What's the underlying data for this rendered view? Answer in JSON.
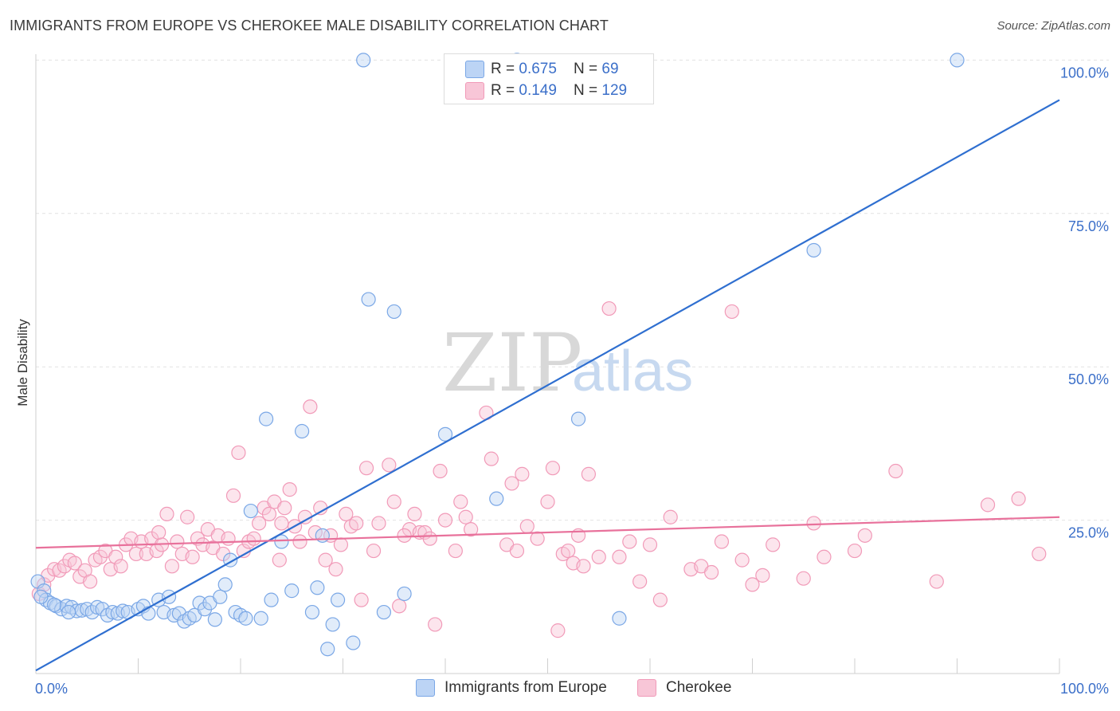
{
  "header": {
    "title": "IMMIGRANTS FROM EUROPE VS CHEROKEE MALE DISABILITY CORRELATION CHART",
    "source": "Source: ZipAtlas.com"
  },
  "watermark": {
    "zip": "ZIP",
    "atlas": "atlas"
  },
  "legend": {
    "series": [
      {
        "r_label": "R = ",
        "r_value": "0.675",
        "n_label": "N = ",
        "n_value": "69"
      },
      {
        "r_label": "R = ",
        "r_value": "0.149",
        "n_label": "N = ",
        "n_value": "129"
      }
    ]
  },
  "chart_data": {
    "type": "scatter",
    "title": "IMMIGRANTS FROM EUROPE VS CHEROKEE MALE DISABILITY CORRELATION CHART",
    "xlabel": "",
    "ylabel": "Male Disability",
    "xlim": [
      0,
      100
    ],
    "ylim": [
      0,
      102
    ],
    "x_tick_labels": [
      "0.0%",
      "100.0%"
    ],
    "y_ticks": [
      25,
      50,
      75,
      100
    ],
    "y_tick_labels": [
      "25.0%",
      "50.0%",
      "75.0%",
      "100.0%"
    ],
    "grid": true,
    "legend_position": "top-center",
    "series": [
      {
        "name": "Immigrants from Europe",
        "color": "#7aa7e6",
        "fill": "#bcd4f5",
        "line_color": "#2f6fd0",
        "trend": {
          "x": [
            0,
            100
          ],
          "y": [
            0.5,
            93.5
          ]
        },
        "points": [
          [
            0.2,
            15
          ],
          [
            0.8,
            13.5
          ],
          [
            1,
            12
          ],
          [
            1.4,
            11.5
          ],
          [
            2,
            11
          ],
          [
            2.5,
            10.5
          ],
          [
            3,
            11
          ],
          [
            3.5,
            10.8
          ],
          [
            4,
            10.2
          ],
          [
            4.5,
            10.3
          ],
          [
            5,
            10.5
          ],
          [
            5.5,
            10
          ],
          [
            6,
            10.8
          ],
          [
            6.5,
            10.5
          ],
          [
            7,
            9.5
          ],
          [
            7.5,
            10
          ],
          [
            8,
            9.8
          ],
          [
            8.5,
            10.2
          ],
          [
            9,
            10
          ],
          [
            10,
            10.5
          ],
          [
            10.5,
            11
          ],
          [
            11,
            9.8
          ],
          [
            12,
            12
          ],
          [
            12.5,
            10
          ],
          [
            13,
            12.5
          ],
          [
            13.5,
            9.5
          ],
          [
            14,
            9.8
          ],
          [
            14.5,
            8.5
          ],
          [
            15,
            9
          ],
          [
            15.5,
            9.5
          ],
          [
            16,
            11.5
          ],
          [
            16.5,
            10.5
          ],
          [
            17,
            11.5
          ],
          [
            17.5,
            8.8
          ],
          [
            18,
            12.5
          ],
          [
            18.5,
            14.5
          ],
          [
            19,
            18.5
          ],
          [
            19.5,
            10
          ],
          [
            20,
            9.5
          ],
          [
            20.5,
            9
          ],
          [
            21,
            26.5
          ],
          [
            22,
            9
          ],
          [
            22.5,
            41.5
          ],
          [
            23,
            12
          ],
          [
            24,
            21.5
          ],
          [
            25,
            13.5
          ],
          [
            26,
            39.5
          ],
          [
            27,
            10
          ],
          [
            27.5,
            14
          ],
          [
            28,
            22.5
          ],
          [
            28.5,
            4
          ],
          [
            29,
            8
          ],
          [
            29.5,
            12
          ],
          [
            31,
            5
          ],
          [
            32,
            100
          ],
          [
            32.5,
            61
          ],
          [
            34,
            10
          ],
          [
            35,
            59
          ],
          [
            36,
            13
          ],
          [
            40,
            39
          ],
          [
            45,
            28.5
          ],
          [
            47,
            100
          ],
          [
            53,
            41.5
          ],
          [
            57,
            9
          ],
          [
            76,
            69
          ],
          [
            90,
            100
          ],
          [
            0.5,
            12.5
          ],
          [
            1.8,
            11.2
          ],
          [
            3.2,
            10
          ]
        ]
      },
      {
        "name": "Cherokee",
        "color": "#f19ab8",
        "fill": "#f8c6d7",
        "line_color": "#e8719b",
        "trend": {
          "x": [
            0,
            100
          ],
          "y": [
            20.5,
            25.5
          ]
        },
        "points": [
          [
            0.3,
            13
          ],
          [
            0.8,
            14.5
          ],
          [
            1.2,
            16
          ],
          [
            1.8,
            17
          ],
          [
            2.3,
            16.8
          ],
          [
            2.8,
            17.5
          ],
          [
            3.3,
            18.5
          ],
          [
            3.8,
            18
          ],
          [
            4.3,
            15.8
          ],
          [
            4.8,
            16.8
          ],
          [
            5.3,
            15
          ],
          [
            5.8,
            18.5
          ],
          [
            6.3,
            19
          ],
          [
            6.8,
            20
          ],
          [
            7.3,
            17
          ],
          [
            7.8,
            19
          ],
          [
            8.3,
            17.5
          ],
          [
            8.8,
            21
          ],
          [
            9.3,
            22
          ],
          [
            9.8,
            19.5
          ],
          [
            10.3,
            21.5
          ],
          [
            10.8,
            19.5
          ],
          [
            11.3,
            22
          ],
          [
            11.8,
            20
          ],
          [
            12.3,
            21
          ],
          [
            12.8,
            26
          ],
          [
            13.3,
            17.5
          ],
          [
            13.8,
            21.5
          ],
          [
            14.3,
            19.5
          ],
          [
            14.8,
            25.5
          ],
          [
            15.3,
            19
          ],
          [
            15.8,
            22
          ],
          [
            16.3,
            21
          ],
          [
            16.8,
            23.5
          ],
          [
            17.3,
            20.5
          ],
          [
            17.8,
            22.5
          ],
          [
            18.3,
            19.5
          ],
          [
            18.8,
            22
          ],
          [
            19.3,
            29
          ],
          [
            19.8,
            36
          ],
          [
            20.3,
            20
          ],
          [
            20.8,
            21.5
          ],
          [
            21.3,
            22
          ],
          [
            21.8,
            24.5
          ],
          [
            22.3,
            27
          ],
          [
            22.8,
            26
          ],
          [
            23.3,
            28
          ],
          [
            23.8,
            18.5
          ],
          [
            24.3,
            27
          ],
          [
            24.8,
            30
          ],
          [
            25.3,
            24
          ],
          [
            25.8,
            21.5
          ],
          [
            26.3,
            25.5
          ],
          [
            26.8,
            43.5
          ],
          [
            27.3,
            23
          ],
          [
            27.8,
            27
          ],
          [
            28.3,
            18.5
          ],
          [
            28.8,
            22.5
          ],
          [
            29.3,
            17
          ],
          [
            29.8,
            21
          ],
          [
            30.3,
            26
          ],
          [
            30.8,
            24
          ],
          [
            31.3,
            24.5
          ],
          [
            31.8,
            12
          ],
          [
            32.3,
            33.5
          ],
          [
            33,
            20
          ],
          [
            33.5,
            24.5
          ],
          [
            34.5,
            34
          ],
          [
            35,
            28
          ],
          [
            35.5,
            11
          ],
          [
            36.5,
            23.5
          ],
          [
            37,
            26
          ],
          [
            37.5,
            23
          ],
          [
            38,
            23
          ],
          [
            38.5,
            22
          ],
          [
            39,
            8
          ],
          [
            39.5,
            33
          ],
          [
            40,
            25
          ],
          [
            41,
            20
          ],
          [
            41.5,
            28
          ],
          [
            42,
            25.5
          ],
          [
            42.5,
            23.5
          ],
          [
            44,
            42.5
          ],
          [
            44.5,
            35
          ],
          [
            46,
            21
          ],
          [
            46.5,
            31
          ],
          [
            47,
            20
          ],
          [
            47.5,
            32.5
          ],
          [
            49,
            22
          ],
          [
            50,
            28
          ],
          [
            50.5,
            33.5
          ],
          [
            51,
            7
          ],
          [
            51.5,
            19.5
          ],
          [
            52,
            20
          ],
          [
            52.5,
            18
          ],
          [
            53,
            22.5
          ],
          [
            53.5,
            17.5
          ],
          [
            54,
            32.5
          ],
          [
            55,
            19
          ],
          [
            56,
            59.5
          ],
          [
            57,
            19
          ],
          [
            58,
            21.5
          ],
          [
            59,
            15
          ],
          [
            60,
            21
          ],
          [
            61,
            12
          ],
          [
            62,
            25.5
          ],
          [
            64,
            17
          ],
          [
            65,
            17.5
          ],
          [
            66,
            16.5
          ],
          [
            67,
            21.5
          ],
          [
            68,
            59
          ],
          [
            69,
            18.5
          ],
          [
            70,
            14.5
          ],
          [
            71,
            16
          ],
          [
            72,
            21
          ],
          [
            75,
            15.5
          ],
          [
            76,
            24.5
          ],
          [
            77,
            19
          ],
          [
            80,
            20
          ],
          [
            81,
            22.5
          ],
          [
            84,
            33
          ],
          [
            88,
            15
          ],
          [
            93,
            27.5
          ],
          [
            96,
            28.5
          ],
          [
            98,
            19.5
          ],
          [
            12,
            23
          ],
          [
            24,
            24.5
          ],
          [
            36,
            22.5
          ],
          [
            48,
            24
          ]
        ]
      }
    ]
  }
}
